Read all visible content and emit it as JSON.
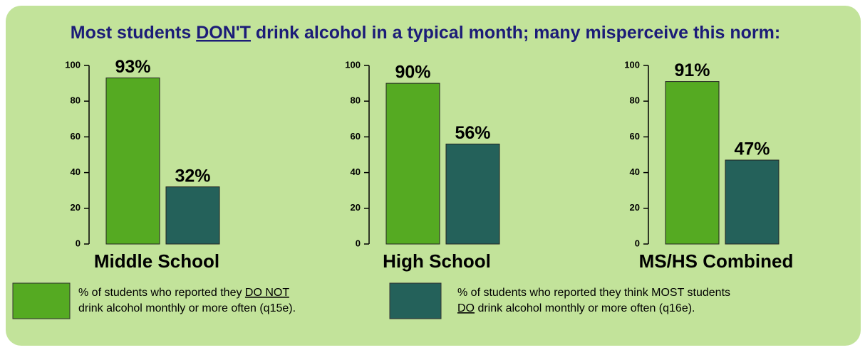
{
  "title": [
    "Most students ",
    "DON'T",
    " drink alcohol in a typical month; many misperceive this norm:"
  ],
  "legend": [
    {
      "color": "#55aa22",
      "text": [
        "% of students who reported they ",
        "DO NOT",
        "drink alcohol monthly or more often (q15e)."
      ]
    },
    {
      "color": "#24615a",
      "text": [
        "% of students who reported they think MOST students",
        "DO",
        " drink alcohol monthly or more often (q16e)."
      ]
    }
  ],
  "chart_data": [
    {
      "type": "bar",
      "xlabel": "Middle School",
      "values": [
        93,
        32
      ],
      "value_labels": [
        "93%",
        "32%"
      ],
      "colors": [
        "#55aa22",
        "#24615a"
      ],
      "ylim": [
        0,
        100
      ],
      "yticks": [
        0,
        20,
        40,
        60,
        80,
        100
      ]
    },
    {
      "type": "bar",
      "xlabel": "High School",
      "values": [
        90,
        56
      ],
      "value_labels": [
        "90%",
        "56%"
      ],
      "colors": [
        "#55aa22",
        "#24615a"
      ],
      "ylim": [
        0,
        100
      ],
      "yticks": [
        0,
        20,
        40,
        60,
        80,
        100
      ]
    },
    {
      "type": "bar",
      "xlabel": "MS/HS Combined",
      "values": [
        91,
        47
      ],
      "value_labels": [
        "91%",
        "47%"
      ],
      "colors": [
        "#55aa22",
        "#24615a"
      ],
      "ylim": [
        0,
        100
      ],
      "yticks": [
        0,
        20,
        40,
        60,
        80,
        100
      ]
    }
  ]
}
